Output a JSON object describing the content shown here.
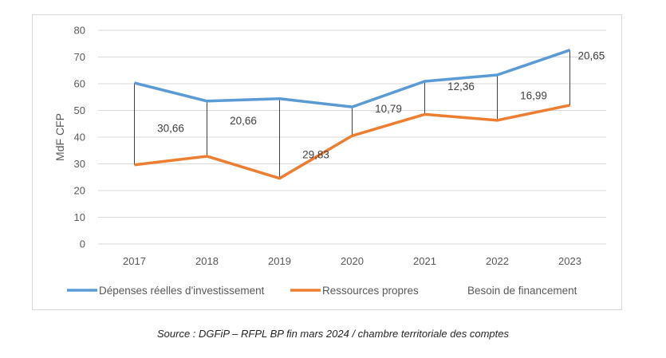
{
  "chart_data": {
    "type": "line",
    "title": "",
    "xlabel": "",
    "ylabel": "MdF CFP",
    "ylim": [
      0,
      80
    ],
    "yticks": [
      0,
      10,
      20,
      30,
      40,
      50,
      60,
      70,
      80
    ],
    "grid": true,
    "categories": [
      "2017",
      "2018",
      "2019",
      "2020",
      "2021",
      "2022",
      "2023"
    ],
    "series": [
      {
        "name": "Dépenses réelles d'investissement",
        "color": "#5b9bd5",
        "values": [
          60.3,
          53.5,
          54.4,
          51.3,
          60.9,
          63.3,
          72.6
        ]
      },
      {
        "name": "Ressources propres",
        "color": "#ed7d31",
        "values": [
          29.64,
          32.84,
          24.57,
          40.51,
          48.54,
          46.31,
          51.95
        ]
      },
      {
        "name": "Besoin de financement",
        "color": "#404040",
        "kind": "drop-lines",
        "values": [
          30.66,
          20.66,
          29.83,
          10.79,
          12.36,
          16.99,
          20.65
        ],
        "labels": [
          "30,66",
          "20,66",
          "29,83",
          "10,79",
          "12,36",
          "16,99",
          "20,65"
        ]
      }
    ],
    "legend_position": "bottom"
  },
  "caption": "Source : DGFiP – RFPL BP fin mars 2024 / chambre territoriale des comptes"
}
